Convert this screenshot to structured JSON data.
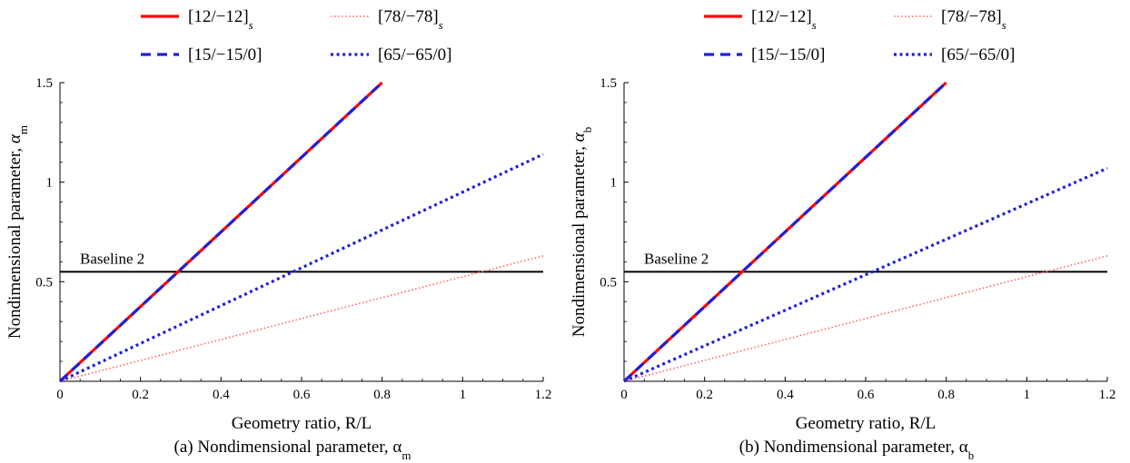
{
  "chart_data": [
    {
      "type": "line",
      "caption": "(a)   Nondimensional parameter, α",
      "caption_sub": "m",
      "xlabel": "Geometry ratio, R/L",
      "ylabel": "Nondimensional parameter, ",
      "ylabel_symbol": "α",
      "ylabel_sub": "m",
      "xlim": [
        0,
        1.2
      ],
      "ylim": [
        0,
        1.5
      ],
      "xticks": [
        "0",
        "0.2",
        "0.4",
        "0.6",
        "0.8",
        "1",
        "1.2"
      ],
      "yticks": [
        "0.5",
        "1",
        "1.5"
      ],
      "legend_position": "top",
      "series": [
        {
          "name": "[12/−12]",
          "name_sub": "s",
          "style": "solid",
          "color": "#ff0000",
          "x": [
            0,
            0.8
          ],
          "y": [
            0,
            1.5
          ]
        },
        {
          "name": "[78/−78]",
          "name_sub": "s",
          "style": "dotted",
          "color": "#ff6b6b",
          "x": [
            0,
            1.2
          ],
          "y": [
            0,
            0.63
          ]
        },
        {
          "name": "[15/−15/0]",
          "name_sub": "",
          "style": "dashed",
          "color": "#1f1fdd",
          "x": [
            0,
            0.8
          ],
          "y": [
            0,
            1.5
          ]
        },
        {
          "name": "[65/−65/0]",
          "name_sub": "",
          "style": "dotted-heavy",
          "color": "#1f1fdd",
          "x": [
            0,
            1.2
          ],
          "y": [
            0,
            1.14
          ]
        }
      ],
      "baseline": {
        "label": "Baseline 2",
        "y": 0.55
      }
    },
    {
      "type": "line",
      "caption": "(b)   Nondimensional parameter, α",
      "caption_sub": "b",
      "xlabel": "Geometry ratio, R/L",
      "ylabel": "Nondimensional parameter, ",
      "ylabel_symbol": "α",
      "ylabel_sub": "b",
      "xlim": [
        0,
        1.2
      ],
      "ylim": [
        0,
        1.5
      ],
      "xticks": [
        "0",
        "0.2",
        "0.4",
        "0.6",
        "0.8",
        "1",
        "1.2"
      ],
      "yticks": [
        "0.5",
        "1",
        "1.5"
      ],
      "legend_position": "top",
      "series": [
        {
          "name": "[12/−12]",
          "name_sub": "s",
          "style": "solid",
          "color": "#ff0000",
          "x": [
            0,
            0.8
          ],
          "y": [
            0,
            1.5
          ]
        },
        {
          "name": "[78/−78]",
          "name_sub": "s",
          "style": "dotted",
          "color": "#ff6b6b",
          "x": [
            0,
            1.2
          ],
          "y": [
            0,
            0.63
          ]
        },
        {
          "name": "[15/−15/0]",
          "name_sub": "",
          "style": "dashed",
          "color": "#1f1fdd",
          "x": [
            0,
            0.8
          ],
          "y": [
            0,
            1.5
          ]
        },
        {
          "name": "[65/−65/0]",
          "name_sub": "",
          "style": "dotted-heavy",
          "color": "#1f1fdd",
          "x": [
            0,
            1.2
          ],
          "y": [
            0,
            1.07
          ]
        }
      ],
      "baseline": {
        "label": "Baseline 2",
        "y": 0.55
      }
    }
  ]
}
